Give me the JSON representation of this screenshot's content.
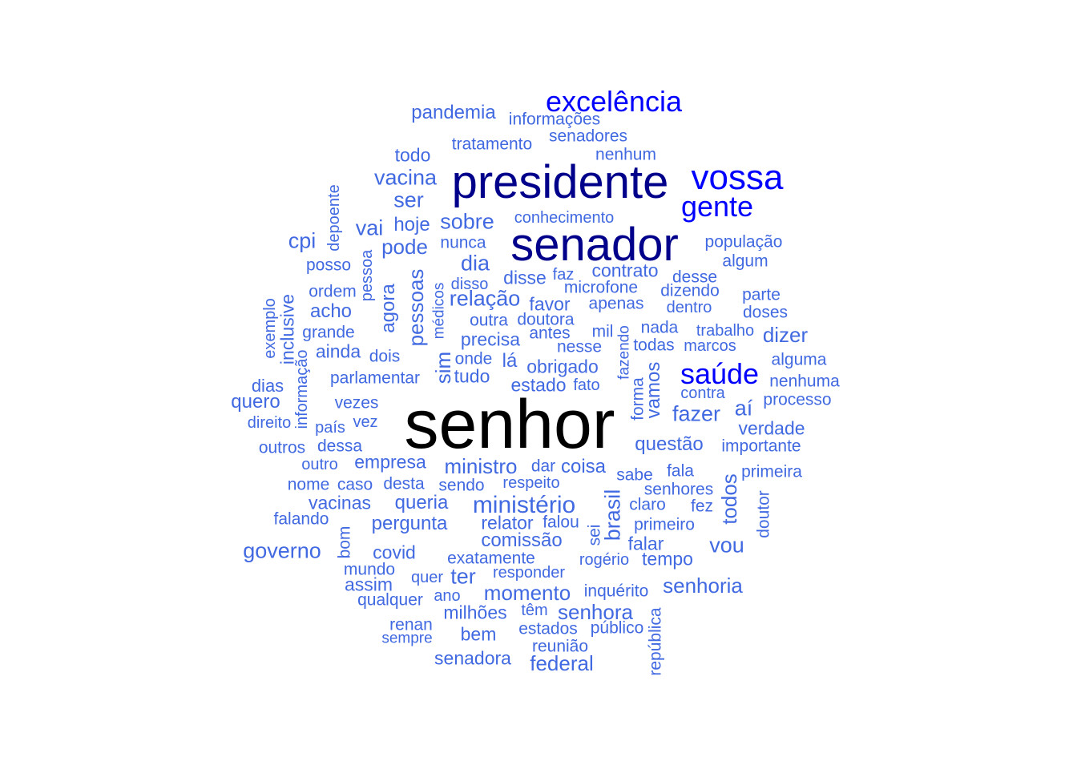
{
  "colors": {
    "tier1": "#000000",
    "tier2": "#00008b",
    "tier3": "#0000ff",
    "tier4": "#4169e1"
  },
  "words": [
    {
      "text": "senhor",
      "tier": "tier1"
    },
    {
      "text": "presidente",
      "tier": "tier2"
    },
    {
      "text": "senador",
      "tier": "tier2"
    },
    {
      "text": "vossa",
      "tier": "tier3"
    },
    {
      "text": "excelência",
      "tier": "tier3"
    },
    {
      "text": "gente",
      "tier": "tier3"
    },
    {
      "text": "saúde",
      "tier": "tier3"
    },
    {
      "text": "pandemia",
      "tier": "tier4"
    },
    {
      "text": "informações",
      "tier": "tier4"
    },
    {
      "text": "senadores",
      "tier": "tier4"
    },
    {
      "text": "tratamento",
      "tier": "tier4"
    },
    {
      "text": "nenhum",
      "tier": "tier4"
    },
    {
      "text": "todo",
      "tier": "tier4"
    },
    {
      "text": "vacina",
      "tier": "tier4"
    },
    {
      "text": "ser",
      "tier": "tier4"
    },
    {
      "text": "hoje",
      "tier": "tier4"
    },
    {
      "text": "sobre",
      "tier": "tier4"
    },
    {
      "text": "conhecimento",
      "tier": "tier4"
    },
    {
      "text": "depoente",
      "tier": "tier4"
    },
    {
      "text": "vai",
      "tier": "tier4"
    },
    {
      "text": "cpi",
      "tier": "tier4"
    },
    {
      "text": "pode",
      "tier": "tier4"
    },
    {
      "text": "nunca",
      "tier": "tier4"
    },
    {
      "text": "população",
      "tier": "tier4"
    },
    {
      "text": "algum",
      "tier": "tier4"
    },
    {
      "text": "posso",
      "tier": "tier4"
    },
    {
      "text": "pessoa",
      "tier": "tier4"
    },
    {
      "text": "dia",
      "tier": "tier4"
    },
    {
      "text": "faz",
      "tier": "tier4"
    },
    {
      "text": "contrato",
      "tier": "tier4"
    },
    {
      "text": "desse",
      "tier": "tier4"
    },
    {
      "text": "disse",
      "tier": "tier4"
    },
    {
      "text": "disso",
      "tier": "tier4"
    },
    {
      "text": "microfone",
      "tier": "tier4"
    },
    {
      "text": "dizendo",
      "tier": "tier4"
    },
    {
      "text": "parte",
      "tier": "tier4"
    },
    {
      "text": "ordem",
      "tier": "tier4"
    },
    {
      "text": "agora",
      "tier": "tier4"
    },
    {
      "text": "pessoas",
      "tier": "tier4"
    },
    {
      "text": "médicos",
      "tier": "tier4"
    },
    {
      "text": "relação",
      "tier": "tier4"
    },
    {
      "text": "favor",
      "tier": "tier4"
    },
    {
      "text": "apenas",
      "tier": "tier4"
    },
    {
      "text": "dentro",
      "tier": "tier4"
    },
    {
      "text": "doses",
      "tier": "tier4"
    },
    {
      "text": "exemplo",
      "tier": "tier4"
    },
    {
      "text": "inclusive",
      "tier": "tier4"
    },
    {
      "text": "acho",
      "tier": "tier4"
    },
    {
      "text": "outra",
      "tier": "tier4"
    },
    {
      "text": "doutora",
      "tier": "tier4"
    },
    {
      "text": "grande",
      "tier": "tier4"
    },
    {
      "text": "antes",
      "tier": "tier4"
    },
    {
      "text": "mil",
      "tier": "tier4"
    },
    {
      "text": "nada",
      "tier": "tier4"
    },
    {
      "text": "trabalho",
      "tier": "tier4"
    },
    {
      "text": "dizer",
      "tier": "tier4"
    },
    {
      "text": "precisa",
      "tier": "tier4"
    },
    {
      "text": "fazendo",
      "tier": "tier4"
    },
    {
      "text": "nesse",
      "tier": "tier4"
    },
    {
      "text": "todas",
      "tier": "tier4"
    },
    {
      "text": "marcos",
      "tier": "tier4"
    },
    {
      "text": "ainda",
      "tier": "tier4"
    },
    {
      "text": "dois",
      "tier": "tier4"
    },
    {
      "text": "informação",
      "tier": "tier4"
    },
    {
      "text": "sim",
      "tier": "tier4"
    },
    {
      "text": "onde",
      "tier": "tier4"
    },
    {
      "text": "lá",
      "tier": "tier4"
    },
    {
      "text": "alguma",
      "tier": "tier4"
    },
    {
      "text": "obrigado",
      "tier": "tier4"
    },
    {
      "text": "parlamentar",
      "tier": "tier4"
    },
    {
      "text": "tudo",
      "tier": "tier4"
    },
    {
      "text": "nenhuma",
      "tier": "tier4"
    },
    {
      "text": "dias",
      "tier": "tier4"
    },
    {
      "text": "estado",
      "tier": "tier4"
    },
    {
      "text": "fato",
      "tier": "tier4"
    },
    {
      "text": "forma",
      "tier": "tier4"
    },
    {
      "text": "vamos",
      "tier": "tier4"
    },
    {
      "text": "contra",
      "tier": "tier4"
    },
    {
      "text": "quero",
      "tier": "tier4"
    },
    {
      "text": "vezes",
      "tier": "tier4"
    },
    {
      "text": "processo",
      "tier": "tier4"
    },
    {
      "text": "aí",
      "tier": "tier4"
    },
    {
      "text": "fazer",
      "tier": "tier4"
    },
    {
      "text": "direito",
      "tier": "tier4"
    },
    {
      "text": "vez",
      "tier": "tier4"
    },
    {
      "text": "país",
      "tier": "tier4"
    },
    {
      "text": "verdade",
      "tier": "tier4"
    },
    {
      "text": "questão",
      "tier": "tier4"
    },
    {
      "text": "outros",
      "tier": "tier4"
    },
    {
      "text": "dessa",
      "tier": "tier4"
    },
    {
      "text": "importante",
      "tier": "tier4"
    },
    {
      "text": "empresa",
      "tier": "tier4"
    },
    {
      "text": "outro",
      "tier": "tier4"
    },
    {
      "text": "ministro",
      "tier": "tier4"
    },
    {
      "text": "dar",
      "tier": "tier4"
    },
    {
      "text": "coisa",
      "tier": "tier4"
    },
    {
      "text": "fala",
      "tier": "tier4"
    },
    {
      "text": "primeira",
      "tier": "tier4"
    },
    {
      "text": "sabe",
      "tier": "tier4"
    },
    {
      "text": "nome",
      "tier": "tier4"
    },
    {
      "text": "caso",
      "tier": "tier4"
    },
    {
      "text": "desta",
      "tier": "tier4"
    },
    {
      "text": "sendo",
      "tier": "tier4"
    },
    {
      "text": "respeito",
      "tier": "tier4"
    },
    {
      "text": "todos",
      "tier": "tier4"
    },
    {
      "text": "senhores",
      "tier": "tier4"
    },
    {
      "text": "vacinas",
      "tier": "tier4"
    },
    {
      "text": "queria",
      "tier": "tier4"
    },
    {
      "text": "ministério",
      "tier": "tier4"
    },
    {
      "text": "brasil",
      "tier": "tier4"
    },
    {
      "text": "claro",
      "tier": "tier4"
    },
    {
      "text": "fez",
      "tier": "tier4"
    },
    {
      "text": "doutor",
      "tier": "tier4"
    },
    {
      "text": "falando",
      "tier": "tier4"
    },
    {
      "text": "pergunta",
      "tier": "tier4"
    },
    {
      "text": "relator",
      "tier": "tier4"
    },
    {
      "text": "falou",
      "tier": "tier4"
    },
    {
      "text": "primeiro",
      "tier": "tier4"
    },
    {
      "text": "bom",
      "tier": "tier4"
    },
    {
      "text": "sei",
      "tier": "tier4"
    },
    {
      "text": "comissão",
      "tier": "tier4"
    },
    {
      "text": "falar",
      "tier": "tier4"
    },
    {
      "text": "vou",
      "tier": "tier4"
    },
    {
      "text": "governo",
      "tier": "tier4"
    },
    {
      "text": "covid",
      "tier": "tier4"
    },
    {
      "text": "exatamente",
      "tier": "tier4"
    },
    {
      "text": "rogério",
      "tier": "tier4"
    },
    {
      "text": "tempo",
      "tier": "tier4"
    },
    {
      "text": "mundo",
      "tier": "tier4"
    },
    {
      "text": "quer",
      "tier": "tier4"
    },
    {
      "text": "ter",
      "tier": "tier4"
    },
    {
      "text": "responder",
      "tier": "tier4"
    },
    {
      "text": "assim",
      "tier": "tier4"
    },
    {
      "text": "senhoria",
      "tier": "tier4"
    },
    {
      "text": "ano",
      "tier": "tier4"
    },
    {
      "text": "momento",
      "tier": "tier4"
    },
    {
      "text": "inquérito",
      "tier": "tier4"
    },
    {
      "text": "qualquer",
      "tier": "tier4"
    },
    {
      "text": "têm",
      "tier": "tier4"
    },
    {
      "text": "senhora",
      "tier": "tier4"
    },
    {
      "text": "república",
      "tier": "tier4"
    },
    {
      "text": "milhões",
      "tier": "tier4"
    },
    {
      "text": "renan",
      "tier": "tier4"
    },
    {
      "text": "estados",
      "tier": "tier4"
    },
    {
      "text": "público",
      "tier": "tier4"
    },
    {
      "text": "sempre",
      "tier": "tier4"
    },
    {
      "text": "bem",
      "tier": "tier4"
    },
    {
      "text": "reunião",
      "tier": "tier4"
    },
    {
      "text": "senadora",
      "tier": "tier4"
    },
    {
      "text": "federal",
      "tier": "tier4"
    }
  ]
}
